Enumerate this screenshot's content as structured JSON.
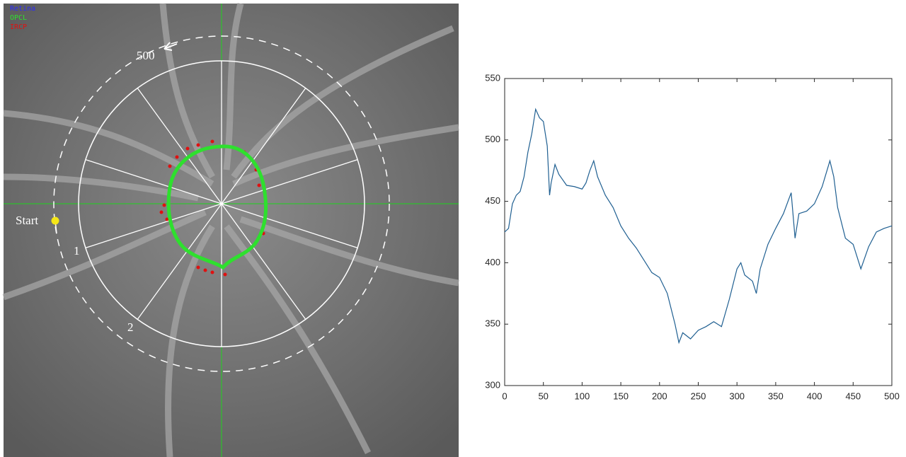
{
  "image": {
    "legend": [
      "Retina",
      "OPCL",
      "IRCP"
    ],
    "arc_end_label": "500",
    "start_label": "Start",
    "sector_labels": [
      "1",
      "2"
    ]
  },
  "chart_data": {
    "type": "line",
    "x": [
      0,
      5,
      10,
      15,
      20,
      25,
      30,
      35,
      40,
      45,
      50,
      55,
      58,
      60,
      65,
      70,
      80,
      90,
      100,
      105,
      110,
      115,
      120,
      130,
      140,
      150,
      160,
      170,
      180,
      190,
      200,
      210,
      220,
      225,
      230,
      240,
      250,
      260,
      270,
      280,
      290,
      300,
      305,
      310,
      320,
      325,
      330,
      340,
      350,
      360,
      370,
      375,
      380,
      390,
      400,
      410,
      420,
      425,
      430,
      440,
      450,
      460,
      470,
      480,
      490,
      500
    ],
    "values": [
      425,
      428,
      448,
      455,
      458,
      470,
      490,
      505,
      525,
      518,
      515,
      495,
      455,
      465,
      480,
      472,
      463,
      462,
      460,
      465,
      475,
      483,
      470,
      455,
      445,
      430,
      420,
      412,
      402,
      392,
      388,
      375,
      350,
      335,
      343,
      338,
      345,
      348,
      352,
      348,
      370,
      395,
      400,
      390,
      385,
      375,
      395,
      415,
      428,
      440,
      457,
      420,
      440,
      442,
      448,
      462,
      483,
      470,
      445,
      420,
      415,
      395,
      413,
      425,
      428,
      430
    ],
    "color": "#1f5f91",
    "xlim": [
      0,
      500
    ],
    "xticks": [
      0,
      50,
      100,
      150,
      200,
      250,
      300,
      350,
      400,
      450,
      500
    ],
    "ylim": [
      300,
      550
    ],
    "yticks": [
      300,
      350,
      400,
      450,
      500,
      550
    ],
    "grid": false
  }
}
